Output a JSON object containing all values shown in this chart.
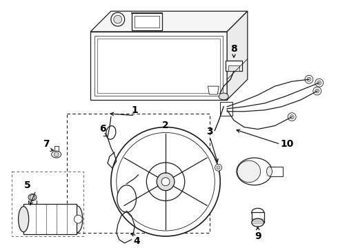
{
  "background_color": "#ffffff",
  "line_color": "#1a1a1a",
  "text_color": "#000000",
  "fig_width": 4.9,
  "fig_height": 3.6,
  "dpi": 100
}
